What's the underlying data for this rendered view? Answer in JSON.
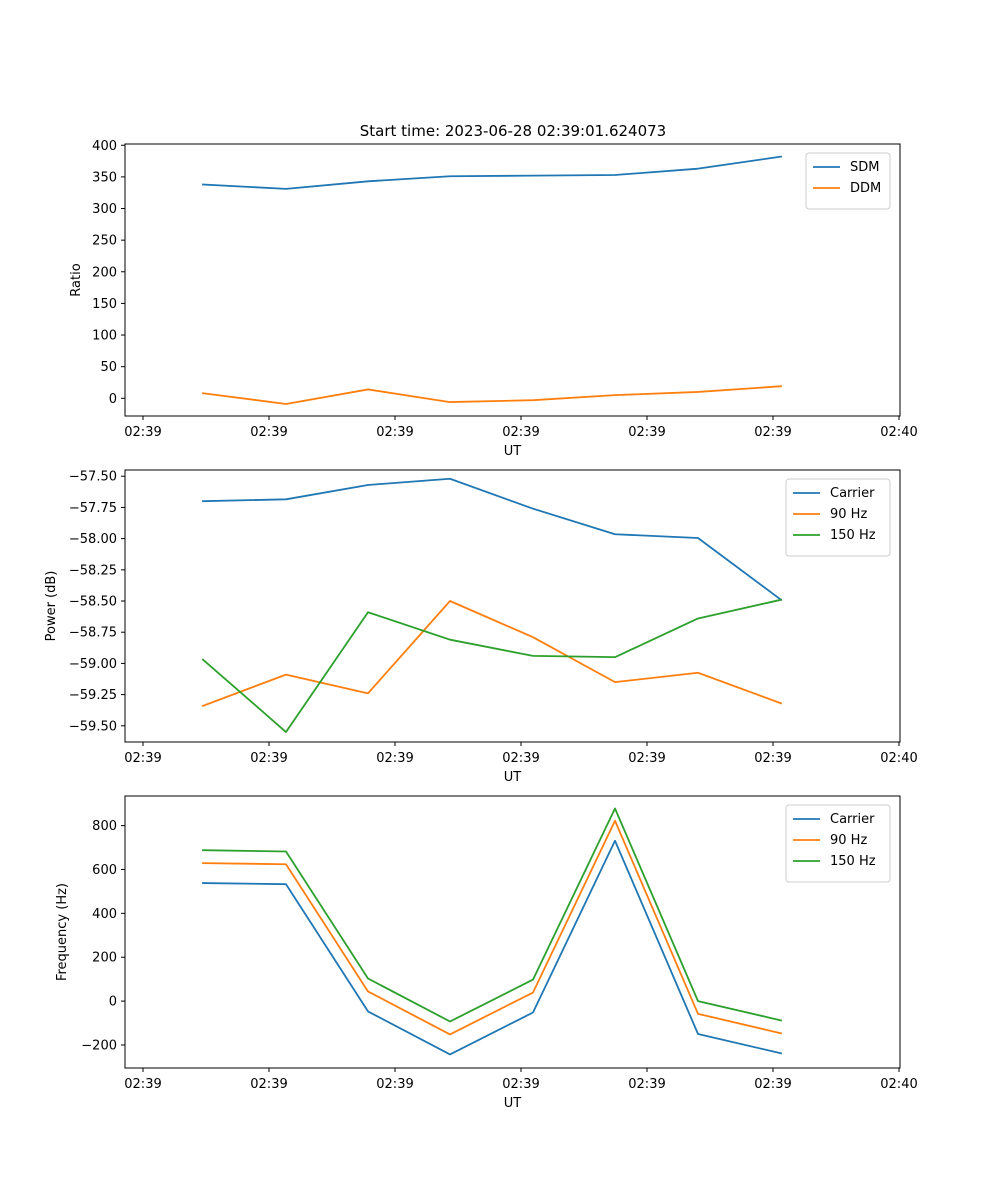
{
  "figure_title": "Start time: 2023-06-28 02:39:01.624073",
  "chart_data": [
    {
      "type": "line",
      "title": "Start time: 2023-06-28 02:39:01.624073",
      "xlabel": "UT",
      "ylabel": "Ratio",
      "x_tick_labels": [
        "02:39",
        "02:39",
        "02:39",
        "02:39",
        "02:39",
        "02:39",
        "02:40"
      ],
      "y_ticks": [
        0,
        50,
        100,
        150,
        200,
        250,
        300,
        350,
        400
      ],
      "y_tick_labels": [
        "0",
        "50",
        "100",
        "150",
        "200",
        "250",
        "300",
        "350",
        "400"
      ],
      "ylim": [
        -28,
        402
      ],
      "legend_position": "upper right",
      "series": [
        {
          "name": "SDM",
          "color": "#1f77b4",
          "values": [
            338,
            331,
            343,
            351,
            352,
            353,
            363,
            382
          ]
        },
        {
          "name": "DDM",
          "color": "#ff7f0e",
          "values": [
            8,
            -9,
            14,
            -6,
            -3,
            5,
            10,
            19
          ]
        }
      ]
    },
    {
      "type": "line",
      "title": "",
      "xlabel": "UT",
      "ylabel": "Power (dB)",
      "x_tick_labels": [
        "02:39",
        "02:39",
        "02:39",
        "02:39",
        "02:39",
        "02:39",
        "02:40"
      ],
      "y_ticks": [
        -59.5,
        -59.25,
        -59.0,
        -58.75,
        -58.5,
        -58.25,
        -58.0,
        -57.75,
        -57.5
      ],
      "y_tick_labels": [
        "−59.50",
        "−59.25",
        "−59.00",
        "−58.75",
        "−58.50",
        "−58.25",
        "−58.00",
        "−57.75",
        "−57.50"
      ],
      "ylim": [
        -59.63,
        -57.45
      ],
      "legend_position": "upper right",
      "series": [
        {
          "name": "Carrier",
          "color": "#1f77b4",
          "values": [
            -57.7,
            -57.685,
            -57.57,
            -57.52,
            -57.76,
            -57.965,
            -57.995,
            -58.49
          ]
        },
        {
          "name": "90 Hz",
          "color": "#ff7f0e",
          "values": [
            -59.34,
            -59.09,
            -59.24,
            -58.5,
            -58.79,
            -59.15,
            -59.075,
            -59.32
          ]
        },
        {
          "name": "150 Hz",
          "color": "#2ca02c",
          "values": [
            -58.97,
            -59.55,
            -58.59,
            -58.81,
            -58.94,
            -58.95,
            -58.64,
            -58.49
          ]
        }
      ]
    },
    {
      "type": "line",
      "title": "",
      "xlabel": "UT",
      "ylabel": "Frequency (Hz)",
      "x_tick_labels": [
        "02:39",
        "02:39",
        "02:39",
        "02:39",
        "02:39",
        "02:39",
        "02:40"
      ],
      "y_ticks": [
        -200,
        0,
        200,
        400,
        600,
        800
      ],
      "y_tick_labels": [
        "−200",
        "0",
        "200",
        "400",
        "600",
        "800"
      ],
      "ylim": [
        -305,
        935
      ],
      "legend_position": "upper right",
      "series": [
        {
          "name": "Carrier",
          "color": "#1f77b4",
          "values": [
            538,
            533,
            -47,
            -243,
            -52,
            731,
            -150,
            -238
          ]
        },
        {
          "name": "90 Hz",
          "color": "#ff7f0e",
          "values": [
            629,
            624,
            44,
            -152,
            39,
            822,
            -58,
            -147
          ]
        },
        {
          "name": "150 Hz",
          "color": "#2ca02c",
          "values": [
            688,
            682,
            103,
            -93,
            98,
            878,
            0,
            -88
          ]
        }
      ]
    }
  ]
}
